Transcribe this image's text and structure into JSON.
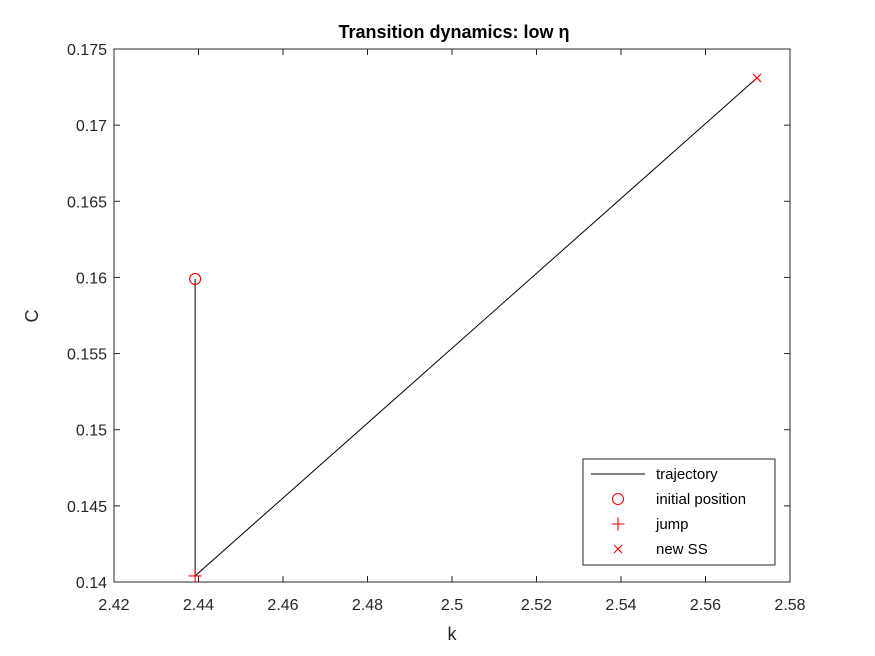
{
  "chart_data": {
    "type": "line",
    "title": "Transition dynamics: low η",
    "xlabel": "k",
    "ylabel": "C",
    "xlim": [
      2.42,
      2.58
    ],
    "ylim": [
      0.14,
      0.175
    ],
    "xticks": [
      2.42,
      2.44,
      2.46,
      2.48,
      2.5,
      2.52,
      2.54,
      2.56,
      2.58
    ],
    "xtick_labels": [
      "2.42",
      "2.44",
      "2.46",
      "2.48",
      "2.5",
      "2.52",
      "2.54",
      "2.56",
      "2.58"
    ],
    "yticks": [
      0.14,
      0.145,
      0.15,
      0.155,
      0.16,
      0.165,
      0.17,
      0.175
    ],
    "ytick_labels": [
      "0.14",
      "0.145",
      "0.15",
      "0.155",
      "0.16",
      "0.165",
      "0.17",
      "0.175"
    ],
    "grid": false,
    "legend_position": "bottom-right",
    "series": [
      {
        "name": "trajectory",
        "kind": "line",
        "color": "#000000",
        "x": [
          2.4392,
          2.4392,
          2.5722
        ],
        "y": [
          0.1599,
          0.1404,
          0.1731
        ]
      },
      {
        "name": "initial position",
        "kind": "marker",
        "marker": "circle",
        "color": "#ff0000",
        "x": [
          2.4392
        ],
        "y": [
          0.1599
        ]
      },
      {
        "name": "jump",
        "kind": "marker",
        "marker": "plus",
        "color": "#ff0000",
        "x": [
          2.4392
        ],
        "y": [
          0.1404
        ]
      },
      {
        "name": "new SS",
        "kind": "marker",
        "marker": "cross",
        "color": "#ff0000",
        "x": [
          2.5722
        ],
        "y": [
          0.1731
        ]
      }
    ]
  }
}
